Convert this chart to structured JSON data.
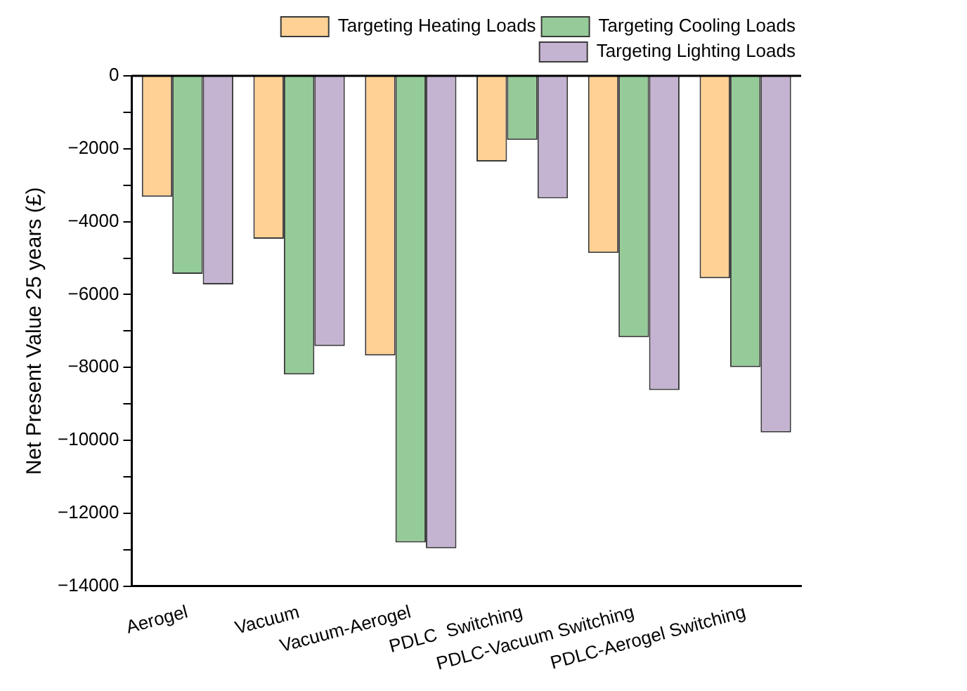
{
  "chart_data": {
    "type": "bar",
    "ylabel": "Net Present Value 25 years (£)",
    "categories": [
      "Aerogel",
      "Vacuum",
      "Vacuum-Aerogel",
      "PDLC  Switching",
      "PDLC-Vacuum Switching",
      "PDLC-Aerogel Switching"
    ],
    "series": [
      {
        "name": "Targeting Heating Loads",
        "color": "#ffd194",
        "values": [
          -3320,
          -4470,
          -7670,
          -2350,
          -4860,
          -5550
        ]
      },
      {
        "name": "Targeting Cooling Loads",
        "color": "#95cb98",
        "values": [
          -5430,
          -8190,
          -12800,
          -1760,
          -7170,
          -7990
        ]
      },
      {
        "name": "Targeting Lighting Loads",
        "color": "#c5b3d2",
        "values": [
          -5720,
          -7410,
          -12960,
          -3360,
          -8620,
          -9780
        ]
      }
    ],
    "ylim": [
      -14000,
      0
    ],
    "yticks": [
      -14000,
      {
        "value": -13000,
        "label": null
      },
      -12000,
      {
        "value": -11000,
        "label": null
      },
      -10000,
      {
        "value": -9000,
        "label": null
      },
      -8000,
      {
        "value": -7000,
        "label": null
      },
      -6000,
      {
        "value": -5000,
        "label": null
      },
      -4000,
      {
        "value": -3000,
        "label": null
      },
      -2000,
      {
        "value": -1000,
        "label": null
      },
      0
    ],
    "grid": false,
    "legend": "top right"
  }
}
